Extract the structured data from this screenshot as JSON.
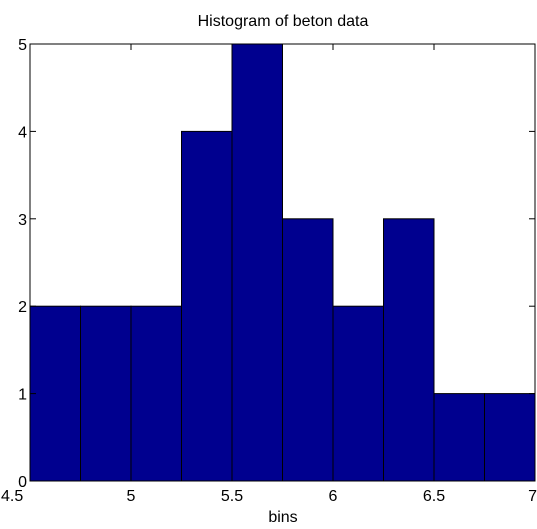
{
  "chart_data": {
    "type": "bar",
    "title": "Histogram of beton data",
    "xlabel": "bins",
    "ylabel": "",
    "bin_edges": [
      4.5,
      4.75,
      5.0,
      5.25,
      5.5,
      5.75,
      6.0,
      6.25,
      6.5,
      6.75,
      7.0
    ],
    "values": [
      2,
      2,
      2,
      4,
      5,
      3,
      2,
      3,
      1,
      1
    ],
    "xlim": [
      4.5,
      7
    ],
    "ylim": [
      0,
      5
    ],
    "x_ticks": [
      4.5,
      5,
      5.5,
      6,
      6.5,
      7
    ],
    "x_tick_labels": [
      "4.5",
      "5",
      "5.5",
      "6",
      "6.5",
      "7"
    ],
    "y_ticks": [
      0,
      1,
      2,
      3,
      4,
      5
    ],
    "y_tick_labels": [
      "0",
      "1",
      "2",
      "3",
      "4",
      "5"
    ],
    "grid": false,
    "bar_color": "#00008f",
    "edge_color": "#000000"
  }
}
